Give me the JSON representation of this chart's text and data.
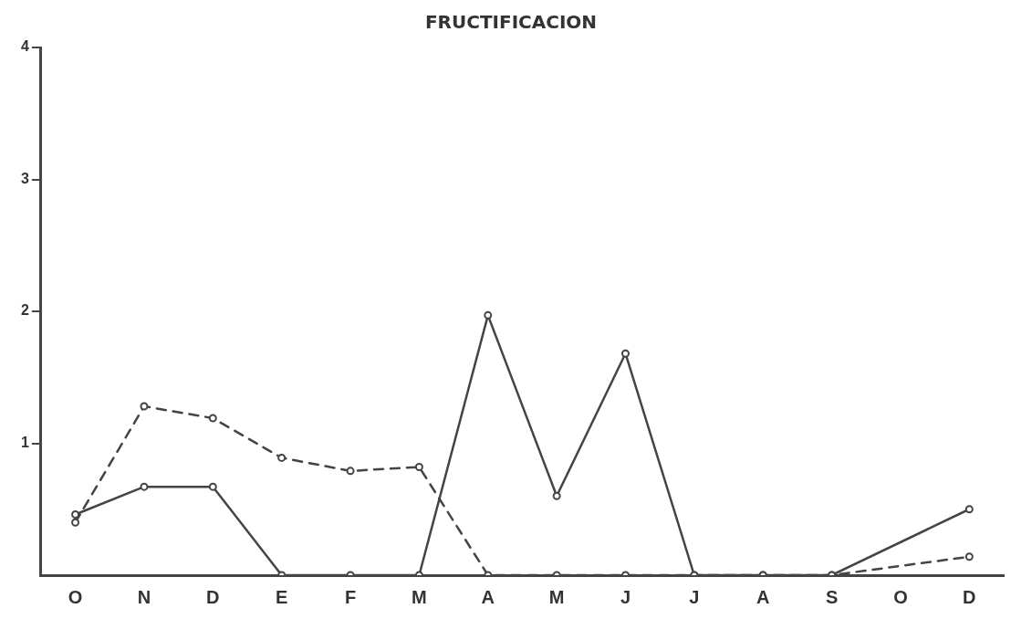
{
  "chart_data": {
    "type": "line",
    "title": "FRUCTIFICACION",
    "categories": [
      "O",
      "N",
      "D",
      "E",
      "F",
      "M",
      "A",
      "M",
      "J",
      "J",
      "A",
      "S",
      "O",
      "D"
    ],
    "series": [
      {
        "color": "#444444",
        "line_style": "solid",
        "values": [
          0.46,
          0.67,
          0.67,
          0,
          0,
          0,
          1.97,
          0.6,
          1.68,
          0,
          0,
          0,
          null,
          0.5
        ]
      },
      {
        "color": "#444444",
        "line_style": "dashed",
        "values": [
          0.4,
          1.28,
          1.19,
          0.89,
          0.79,
          0.82,
          0,
          0,
          0,
          0,
          0,
          0,
          null,
          0.14
        ]
      }
    ],
    "ylim": [
      0,
      4
    ],
    "yticks": [
      1,
      2,
      3,
      4
    ],
    "grid": false,
    "legend": false,
    "marker": "circle"
  }
}
